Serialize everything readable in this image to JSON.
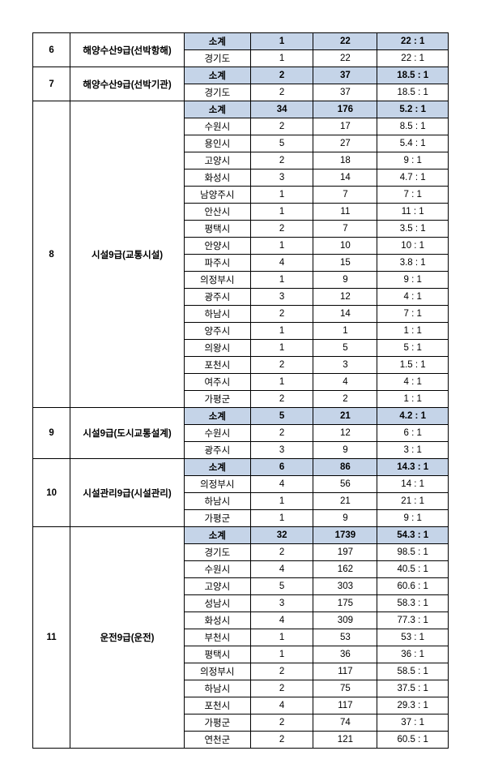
{
  "sections": [
    {
      "num": "6",
      "name": "해양수산9급(선박항해)",
      "subtotal": {
        "label": "소계",
        "v1": "1",
        "v2": "22",
        "ratio": "22 : 1"
      },
      "rows": [
        {
          "region": "경기도",
          "v1": "1",
          "v2": "22",
          "ratio": "22 : 1"
        }
      ]
    },
    {
      "num": "7",
      "name": "해양수산9급(선박기관)",
      "subtotal": {
        "label": "소계",
        "v1": "2",
        "v2": "37",
        "ratio": "18.5 : 1"
      },
      "rows": [
        {
          "region": "경기도",
          "v1": "2",
          "v2": "37",
          "ratio": "18.5 : 1"
        }
      ]
    },
    {
      "num": "8",
      "name": "시설9급(교통시설)",
      "subtotal": {
        "label": "소계",
        "v1": "34",
        "v2": "176",
        "ratio": "5.2 : 1"
      },
      "rows": [
        {
          "region": "수원시",
          "v1": "2",
          "v2": "17",
          "ratio": "8.5 : 1"
        },
        {
          "region": "용인시",
          "v1": "5",
          "v2": "27",
          "ratio": "5.4 : 1"
        },
        {
          "region": "고양시",
          "v1": "2",
          "v2": "18",
          "ratio": "9 : 1"
        },
        {
          "region": "화성시",
          "v1": "3",
          "v2": "14",
          "ratio": "4.7 : 1"
        },
        {
          "region": "남양주시",
          "v1": "1",
          "v2": "7",
          "ratio": "7 : 1"
        },
        {
          "region": "안산시",
          "v1": "1",
          "v2": "11",
          "ratio": "11 : 1"
        },
        {
          "region": "평택시",
          "v1": "2",
          "v2": "7",
          "ratio": "3.5 : 1"
        },
        {
          "region": "안양시",
          "v1": "1",
          "v2": "10",
          "ratio": "10 : 1"
        },
        {
          "region": "파주시",
          "v1": "4",
          "v2": "15",
          "ratio": "3.8 : 1"
        },
        {
          "region": "의정부시",
          "v1": "1",
          "v2": "9",
          "ratio": "9 : 1"
        },
        {
          "region": "광주시",
          "v1": "3",
          "v2": "12",
          "ratio": "4 : 1"
        },
        {
          "region": "하남시",
          "v1": "2",
          "v2": "14",
          "ratio": "7 : 1"
        },
        {
          "region": "양주시",
          "v1": "1",
          "v2": "1",
          "ratio": "1 : 1"
        },
        {
          "region": "의왕시",
          "v1": "1",
          "v2": "5",
          "ratio": "5 : 1"
        },
        {
          "region": "포천시",
          "v1": "2",
          "v2": "3",
          "ratio": "1.5 : 1"
        },
        {
          "region": "여주시",
          "v1": "1",
          "v2": "4",
          "ratio": "4 : 1"
        },
        {
          "region": "가평군",
          "v1": "2",
          "v2": "2",
          "ratio": "1 : 1"
        }
      ]
    },
    {
      "num": "9",
      "name": "시설9급(도시교통설계)",
      "subtotal": {
        "label": "소계",
        "v1": "5",
        "v2": "21",
        "ratio": "4.2 : 1"
      },
      "rows": [
        {
          "region": "수원시",
          "v1": "2",
          "v2": "12",
          "ratio": "6 : 1"
        },
        {
          "region": "광주시",
          "v1": "3",
          "v2": "9",
          "ratio": "3 : 1"
        }
      ]
    },
    {
      "num": "10",
      "name": "시설관리9급(시설관리)",
      "subtotal": {
        "label": "소계",
        "v1": "6",
        "v2": "86",
        "ratio": "14.3 : 1"
      },
      "rows": [
        {
          "region": "의정부시",
          "v1": "4",
          "v2": "56",
          "ratio": "14 : 1"
        },
        {
          "region": "하남시",
          "v1": "1",
          "v2": "21",
          "ratio": "21 : 1"
        },
        {
          "region": "가평군",
          "v1": "1",
          "v2": "9",
          "ratio": "9 : 1"
        }
      ]
    },
    {
      "num": "11",
      "name": "운전9급(운전)",
      "subtotal": {
        "label": "소계",
        "v1": "32",
        "v2": "1739",
        "ratio": "54.3 : 1"
      },
      "rows": [
        {
          "region": "경기도",
          "v1": "2",
          "v2": "197",
          "ratio": "98.5 : 1"
        },
        {
          "region": "수원시",
          "v1": "4",
          "v2": "162",
          "ratio": "40.5 : 1"
        },
        {
          "region": "고양시",
          "v1": "5",
          "v2": "303",
          "ratio": "60.6 : 1"
        },
        {
          "region": "성남시",
          "v1": "3",
          "v2": "175",
          "ratio": "58.3 : 1"
        },
        {
          "region": "화성시",
          "v1": "4",
          "v2": "309",
          "ratio": "77.3 : 1"
        },
        {
          "region": "부천시",
          "v1": "1",
          "v2": "53",
          "ratio": "53 : 1"
        },
        {
          "region": "평택시",
          "v1": "1",
          "v2": "36",
          "ratio": "36 : 1"
        },
        {
          "region": "의정부시",
          "v1": "2",
          "v2": "117",
          "ratio": "58.5 : 1"
        },
        {
          "region": "하남시",
          "v1": "2",
          "v2": "75",
          "ratio": "37.5 : 1"
        },
        {
          "region": "포천시",
          "v1": "4",
          "v2": "117",
          "ratio": "29.3 : 1"
        },
        {
          "region": "가평군",
          "v1": "2",
          "v2": "74",
          "ratio": "37 : 1"
        },
        {
          "region": "연천군",
          "v1": "2",
          "v2": "121",
          "ratio": "60.5 : 1"
        }
      ]
    }
  ]
}
